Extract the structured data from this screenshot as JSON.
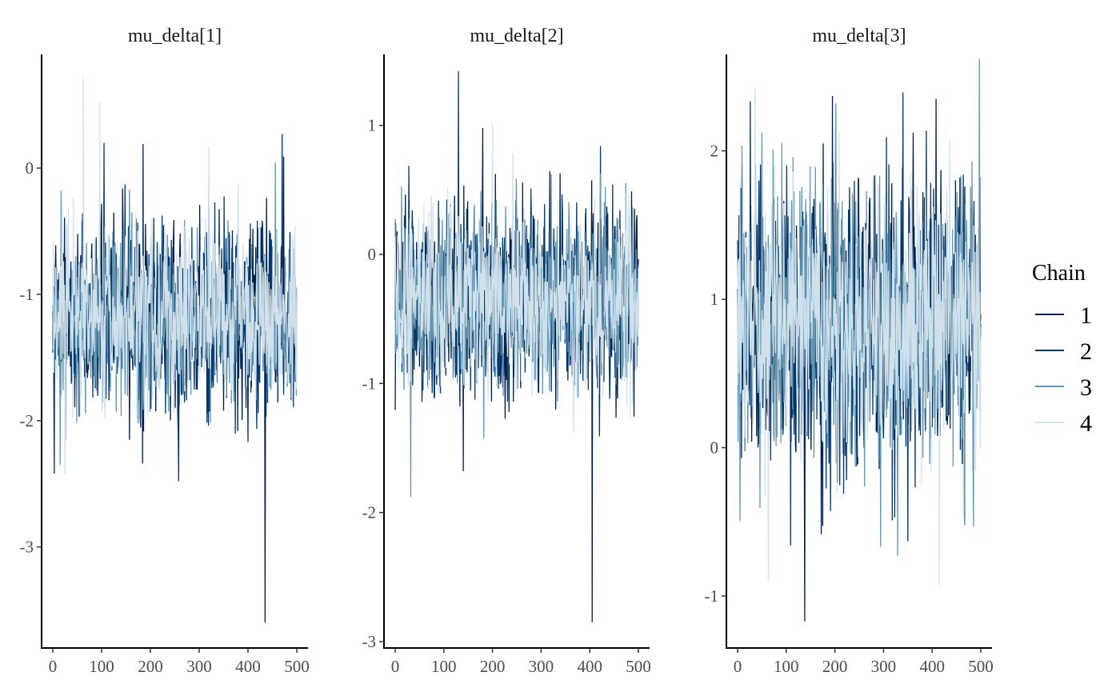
{
  "chart_data": {
    "type": "line",
    "x_range": [
      0,
      500
    ],
    "x_ticks": [
      0,
      100,
      200,
      300,
      400,
      500
    ],
    "grid": false,
    "legend_title": "Chain",
    "legend_placement": "right",
    "chains": [
      {
        "name": "1",
        "color": "#011f4b"
      },
      {
        "name": "2",
        "color": "#03396c"
      },
      {
        "name": "3",
        "color": "#6497b1"
      },
      {
        "name": "4",
        "color": "#d1e1ec"
      }
    ],
    "panels": [
      {
        "title": "mu_delta[1]",
        "ylim": [
          -3.8,
          0.9
        ],
        "y_ticks": [
          -3,
          -2,
          -1,
          0
        ],
        "mean": -1.2,
        "sd": 0.35,
        "extremes": [
          {
            "chain": 1,
            "iter": 435,
            "value": -3.6
          },
          {
            "chain": 2,
            "iter": 258,
            "value": -2.48
          },
          {
            "chain": 4,
            "iter": 63,
            "value": 0.72
          },
          {
            "chain": 4,
            "iter": 96,
            "value": 0.52
          },
          {
            "chain": 2,
            "iter": 470,
            "value": 0.27
          },
          {
            "chain": 1,
            "iter": 185,
            "value": 0.19
          },
          {
            "chain": 2,
            "iter": 105,
            "value": 0.2
          },
          {
            "chain": 3,
            "iter": 15,
            "value": -2.35
          },
          {
            "chain": 4,
            "iter": 25,
            "value": -2.43
          }
        ]
      },
      {
        "title": "mu_delta[2]",
        "ylim": [
          -3.05,
          1.55
        ],
        "y_ticks": [
          -3,
          -2,
          -1,
          0,
          1
        ],
        "mean": -0.35,
        "sd": 0.35,
        "extremes": [
          {
            "chain": 1,
            "iter": 405,
            "value": -2.85
          },
          {
            "chain": 2,
            "iter": 130,
            "value": 1.42
          },
          {
            "chain": 3,
            "iter": 32,
            "value": -1.88
          },
          {
            "chain": 1,
            "iter": 140,
            "value": -1.68
          },
          {
            "chain": 2,
            "iter": 422,
            "value": 0.84
          },
          {
            "chain": 4,
            "iter": 200,
            "value": 1.02
          },
          {
            "chain": 1,
            "iter": 180,
            "value": 0.98
          }
        ]
      },
      {
        "title": "mu_delta[3]",
        "ylim": [
          -1.35,
          2.65
        ],
        "y_ticks": [
          -1,
          0,
          1,
          2
        ],
        "mean": 0.85,
        "sd": 0.45,
        "extremes": [
          {
            "chain": 1,
            "iter": 138,
            "value": -1.17
          },
          {
            "chain": 3,
            "iter": 497,
            "value": 2.62
          },
          {
            "chain": 1,
            "iter": 195,
            "value": 2.37
          },
          {
            "chain": 1,
            "iter": 408,
            "value": 2.35
          },
          {
            "chain": 4,
            "iter": 36,
            "value": 2.42
          },
          {
            "chain": 4,
            "iter": 63,
            "value": -0.9
          },
          {
            "chain": 4,
            "iter": 415,
            "value": -0.93
          },
          {
            "chain": 2,
            "iter": 350,
            "value": -0.63
          },
          {
            "chain": 3,
            "iter": 485,
            "value": -0.53
          }
        ]
      }
    ]
  }
}
